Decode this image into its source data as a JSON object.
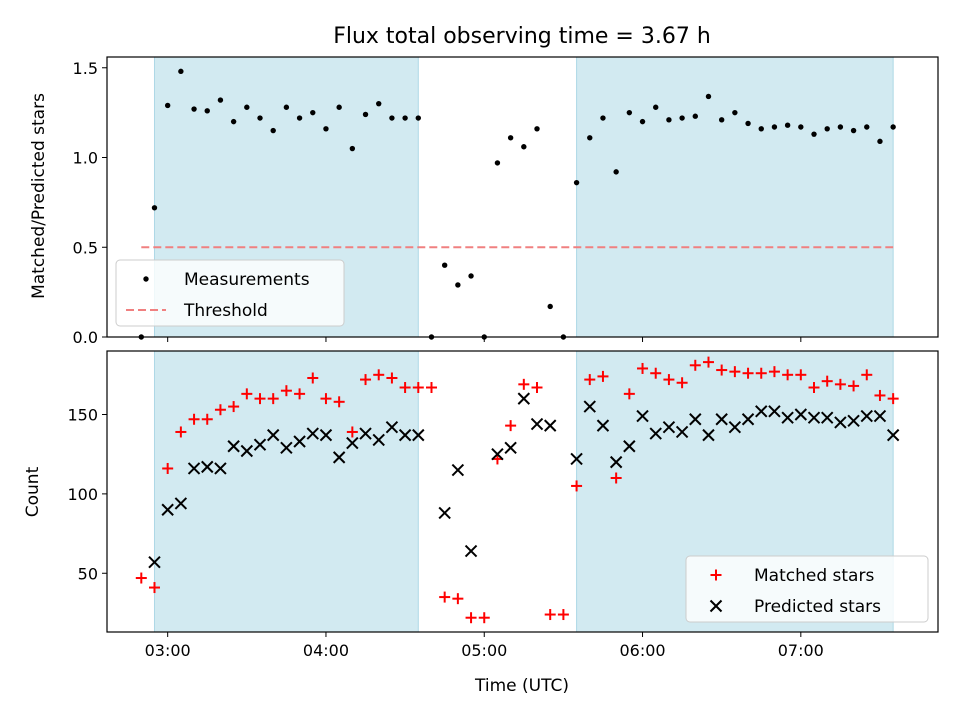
{
  "chart_data": [
    {
      "type": "scatter",
      "title": "Flux total observing time = 3.67 h",
      "xlabel": "",
      "ylabel": "Matched/Predicted stars",
      "xlim": [
        "02:37",
        "07:52"
      ],
      "ylim": [
        0,
        1.56
      ],
      "yticks": [
        0.0,
        0.5,
        1.0,
        1.5
      ],
      "ytick_labels": [
        "0.0",
        "0.5",
        "1.0",
        "1.5"
      ],
      "xticks": [
        "03:00",
        "04:00",
        "05:00",
        "06:00",
        "07:00"
      ],
      "xtick_labels_visible": false,
      "shaded_intervals": [
        [
          "02:55",
          "04:35"
        ],
        [
          "05:35",
          "07:35"
        ]
      ],
      "shade_color": "#add8e6",
      "legend": {
        "position": "lower-left",
        "entries": [
          {
            "label": "Measurements",
            "marker": "dot",
            "color": "#000000"
          },
          {
            "label": "Threshold",
            "marker": "dashed-line",
            "color": "#f08080"
          }
        ]
      },
      "threshold": {
        "name": "Threshold",
        "y": 0.5,
        "x_range": [
          "02:50",
          "07:35"
        ],
        "color": "#f08080",
        "style": "dashed"
      },
      "series": [
        {
          "name": "Measurements",
          "color": "#000000",
          "marker": "dot",
          "points": [
            [
              "02:50",
              0.0
            ],
            [
              "02:55",
              0.72
            ],
            [
              "03:00",
              1.29
            ],
            [
              "03:05",
              1.48
            ],
            [
              "03:10",
              1.27
            ],
            [
              "03:15",
              1.26
            ],
            [
              "03:20",
              1.32
            ],
            [
              "03:25",
              1.2
            ],
            [
              "03:30",
              1.28
            ],
            [
              "03:35",
              1.22
            ],
            [
              "03:40",
              1.15
            ],
            [
              "03:45",
              1.28
            ],
            [
              "03:50",
              1.22
            ],
            [
              "03:55",
              1.25
            ],
            [
              "04:00",
              1.16
            ],
            [
              "04:05",
              1.28
            ],
            [
              "04:10",
              1.05
            ],
            [
              "04:15",
              1.24
            ],
            [
              "04:20",
              1.3
            ],
            [
              "04:25",
              1.22
            ],
            [
              "04:30",
              1.22
            ],
            [
              "04:35",
              1.22
            ],
            [
              "04:40",
              0.0
            ],
            [
              "04:45",
              0.4
            ],
            [
              "04:50",
              0.29
            ],
            [
              "04:55",
              0.34
            ],
            [
              "05:00",
              0.0
            ],
            [
              "05:05",
              0.97
            ],
            [
              "05:10",
              1.11
            ],
            [
              "05:15",
              1.06
            ],
            [
              "05:20",
              1.16
            ],
            [
              "05:25",
              0.17
            ],
            [
              "05:30",
              0.0
            ],
            [
              "05:35",
              0.86
            ],
            [
              "05:40",
              1.11
            ],
            [
              "05:45",
              1.22
            ],
            [
              "05:50",
              0.92
            ],
            [
              "05:55",
              1.25
            ],
            [
              "06:00",
              1.2
            ],
            [
              "06:05",
              1.28
            ],
            [
              "06:10",
              1.21
            ],
            [
              "06:15",
              1.22
            ],
            [
              "06:20",
              1.23
            ],
            [
              "06:25",
              1.34
            ],
            [
              "06:30",
              1.21
            ],
            [
              "06:35",
              1.25
            ],
            [
              "06:40",
              1.19
            ],
            [
              "06:45",
              1.16
            ],
            [
              "06:50",
              1.17
            ],
            [
              "06:55",
              1.18
            ],
            [
              "07:00",
              1.17
            ],
            [
              "07:05",
              1.13
            ],
            [
              "07:10",
              1.16
            ],
            [
              "07:15",
              1.17
            ],
            [
              "07:20",
              1.15
            ],
            [
              "07:25",
              1.17
            ],
            [
              "07:30",
              1.09
            ],
            [
              "07:35",
              1.17
            ]
          ]
        }
      ]
    },
    {
      "type": "scatter",
      "title": "",
      "xlabel": "Time (UTC)",
      "ylabel": "Count",
      "xlim": [
        "02:37",
        "07:52"
      ],
      "ylim": [
        13,
        190
      ],
      "yticks": [
        50,
        100,
        150
      ],
      "ytick_labels": [
        "50",
        "100",
        "150"
      ],
      "xticks": [
        "03:00",
        "04:00",
        "05:00",
        "06:00",
        "07:00"
      ],
      "xtick_labels": [
        "03:00",
        "04:00",
        "05:00",
        "06:00",
        "07:00"
      ],
      "shaded_intervals": [
        [
          "02:55",
          "04:35"
        ],
        [
          "05:35",
          "07:35"
        ]
      ],
      "shade_color": "#add8e6",
      "legend": {
        "position": "lower-right",
        "entries": [
          {
            "label": "Matched stars",
            "marker": "plus",
            "color": "#ff0000"
          },
          {
            "label": "Predicted stars",
            "marker": "x",
            "color": "#000000"
          }
        ]
      },
      "series": [
        {
          "name": "Matched stars",
          "color": "#ff0000",
          "marker": "plus",
          "points": [
            [
              "02:50",
              47
            ],
            [
              "02:55",
              41
            ],
            [
              "03:00",
              116
            ],
            [
              "03:05",
              139
            ],
            [
              "03:10",
              147
            ],
            [
              "03:15",
              147
            ],
            [
              "03:20",
              153
            ],
            [
              "03:25",
              155
            ],
            [
              "03:30",
              163
            ],
            [
              "03:35",
              160
            ],
            [
              "03:40",
              160
            ],
            [
              "03:45",
              165
            ],
            [
              "03:50",
              163
            ],
            [
              "03:55",
              173
            ],
            [
              "04:00",
              160
            ],
            [
              "04:05",
              158
            ],
            [
              "04:10",
              139
            ],
            [
              "04:15",
              172
            ],
            [
              "04:20",
              175
            ],
            [
              "04:25",
              173
            ],
            [
              "04:30",
              167
            ],
            [
              "04:35",
              167
            ],
            [
              "04:40",
              167
            ],
            [
              "04:45",
              35
            ],
            [
              "04:50",
              34
            ],
            [
              "04:55",
              22
            ],
            [
              "05:00",
              22
            ],
            [
              "05:05",
              122
            ],
            [
              "05:10",
              143
            ],
            [
              "05:15",
              169
            ],
            [
              "05:20",
              167
            ],
            [
              "05:25",
              24
            ],
            [
              "05:30",
              24
            ],
            [
              "05:35",
              105
            ],
            [
              "05:40",
              172
            ],
            [
              "05:45",
              174
            ],
            [
              "05:50",
              110
            ],
            [
              "05:55",
              163
            ],
            [
              "06:00",
              179
            ],
            [
              "06:05",
              176
            ],
            [
              "06:10",
              172
            ],
            [
              "06:15",
              170
            ],
            [
              "06:20",
              181
            ],
            [
              "06:25",
              183
            ],
            [
              "06:30",
              178
            ],
            [
              "06:35",
              177
            ],
            [
              "06:40",
              176
            ],
            [
              "06:45",
              176
            ],
            [
              "06:50",
              177
            ],
            [
              "06:55",
              175
            ],
            [
              "07:00",
              175
            ],
            [
              "07:05",
              167
            ],
            [
              "07:10",
              171
            ],
            [
              "07:15",
              169
            ],
            [
              "07:20",
              168
            ],
            [
              "07:25",
              175
            ],
            [
              "07:30",
              162
            ],
            [
              "07:35",
              160
            ]
          ]
        },
        {
          "name": "Predicted stars",
          "color": "#000000",
          "marker": "x",
          "points": [
            [
              "02:55",
              57
            ],
            [
              "03:00",
              90
            ],
            [
              "03:05",
              94
            ],
            [
              "03:10",
              116
            ],
            [
              "03:15",
              117
            ],
            [
              "03:20",
              116
            ],
            [
              "03:25",
              130
            ],
            [
              "03:30",
              127
            ],
            [
              "03:35",
              131
            ],
            [
              "03:40",
              137
            ],
            [
              "03:45",
              129
            ],
            [
              "03:50",
              133
            ],
            [
              "03:55",
              138
            ],
            [
              "04:00",
              137
            ],
            [
              "04:05",
              123
            ],
            [
              "04:10",
              132
            ],
            [
              "04:15",
              138
            ],
            [
              "04:20",
              134
            ],
            [
              "04:25",
              142
            ],
            [
              "04:30",
              137
            ],
            [
              "04:35",
              137
            ],
            [
              "04:45",
              88
            ],
            [
              "04:50",
              115
            ],
            [
              "04:55",
              64
            ],
            [
              "05:05",
              125
            ],
            [
              "05:10",
              129
            ],
            [
              "05:15",
              160
            ],
            [
              "05:20",
              144
            ],
            [
              "05:25",
              143
            ],
            [
              "05:35",
              122
            ],
            [
              "05:40",
              155
            ],
            [
              "05:45",
              143
            ],
            [
              "05:50",
              120
            ],
            [
              "05:55",
              130
            ],
            [
              "06:00",
              149
            ],
            [
              "06:05",
              138
            ],
            [
              "06:10",
              142
            ],
            [
              "06:15",
              139
            ],
            [
              "06:20",
              147
            ],
            [
              "06:25",
              137
            ],
            [
              "06:30",
              147
            ],
            [
              "06:35",
              142
            ],
            [
              "06:40",
              147
            ],
            [
              "06:45",
              152
            ],
            [
              "06:50",
              152
            ],
            [
              "06:55",
              148
            ],
            [
              "07:00",
              150
            ],
            [
              "07:05",
              148
            ],
            [
              "07:10",
              148
            ],
            [
              "07:15",
              145
            ],
            [
              "07:20",
              146
            ],
            [
              "07:25",
              149
            ],
            [
              "07:30",
              149
            ],
            [
              "07:35",
              137
            ]
          ]
        }
      ]
    }
  ]
}
